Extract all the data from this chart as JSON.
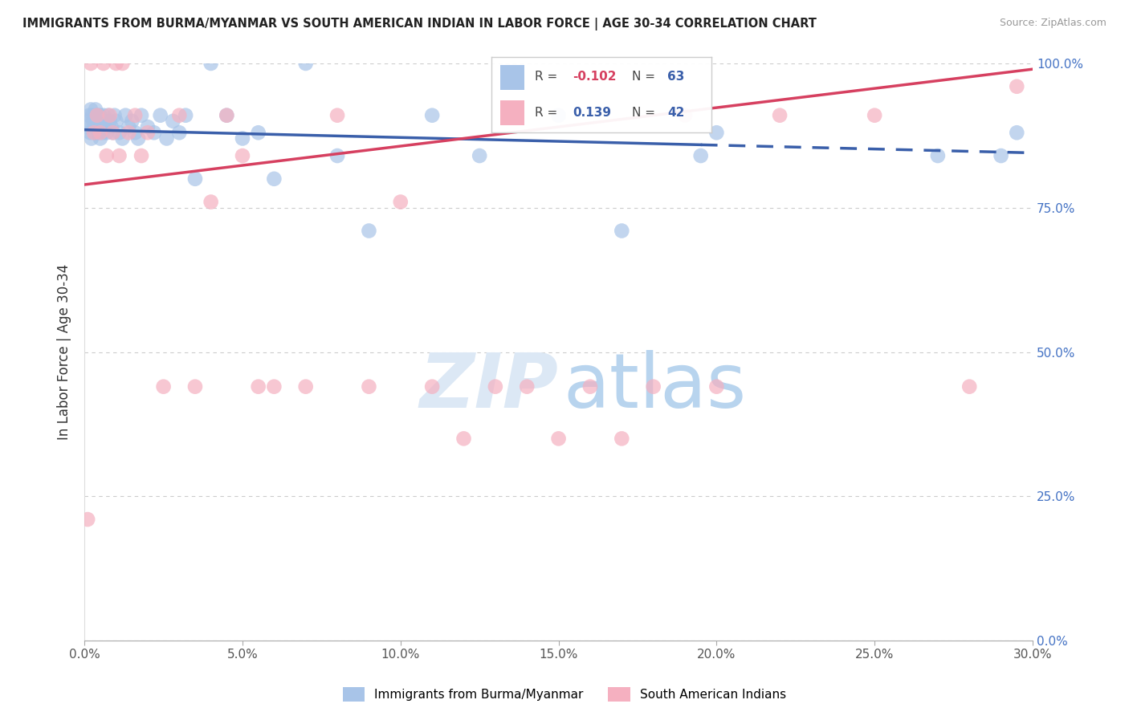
{
  "title": "IMMIGRANTS FROM BURMA/MYANMAR VS SOUTH AMERICAN INDIAN IN LABOR FORCE | AGE 30-34 CORRELATION CHART",
  "source": "Source: ZipAtlas.com",
  "ylabel": "In Labor Force | Age 30-34",
  "blue_R": -0.102,
  "blue_N": 63,
  "pink_R": 0.139,
  "pink_N": 42,
  "blue_label": "Immigrants from Burma/Myanmar",
  "pink_label": "South American Indians",
  "blue_color": "#a8c4e8",
  "pink_color": "#f5b0c0",
  "blue_line_color": "#3a5faa",
  "pink_line_color": "#d64060",
  "watermark_zip_color": "#dce8f5",
  "watermark_atlas_color": "#b8d4ee",
  "blue_x": [
    0.05,
    0.1,
    0.15,
    0.18,
    0.2,
    0.22,
    0.25,
    0.28,
    0.3,
    0.32,
    0.35,
    0.38,
    0.4,
    0.42,
    0.45,
    0.48,
    0.5,
    0.52,
    0.55,
    0.58,
    0.6,
    0.62,
    0.65,
    0.7,
    0.75,
    0.8,
    0.85,
    0.9,
    0.95,
    1.0,
    1.1,
    1.2,
    1.3,
    1.4,
    1.5,
    1.6,
    1.7,
    1.8,
    2.0,
    2.2,
    2.4,
    2.6,
    2.8,
    3.0,
    3.2,
    3.5,
    4.0,
    4.5,
    5.0,
    5.5,
    6.0,
    7.0,
    8.0,
    9.0,
    11.0,
    12.5,
    15.0,
    17.0,
    19.5,
    20.0,
    27.0,
    29.0,
    29.5
  ],
  "blue_y": [
    89,
    90,
    91,
    88,
    92,
    87,
    91,
    90,
    89,
    88,
    92,
    89,
    91,
    90,
    88,
    91,
    87,
    90,
    89,
    88,
    91,
    90,
    89,
    88,
    91,
    90,
    89,
    88,
    91,
    90,
    88,
    87,
    91,
    89,
    90,
    88,
    87,
    91,
    89,
    88,
    91,
    87,
    90,
    88,
    91,
    80,
    100,
    91,
    87,
    88,
    80,
    100,
    84,
    71,
    91,
    84,
    91,
    71,
    84,
    88,
    84,
    84,
    88
  ],
  "pink_x": [
    0.1,
    0.2,
    0.3,
    0.4,
    0.5,
    0.6,
    0.7,
    0.8,
    0.9,
    1.0,
    1.1,
    1.2,
    1.4,
    1.6,
    1.8,
    2.0,
    2.5,
    3.0,
    3.5,
    4.0,
    4.5,
    5.0,
    5.5,
    6.0,
    7.0,
    8.0,
    9.0,
    10.0,
    11.0,
    12.0,
    13.0,
    14.0,
    15.0,
    16.0,
    17.0,
    18.0,
    19.0,
    20.0,
    22.0,
    25.0,
    28.0,
    29.5
  ],
  "pink_y": [
    21,
    100,
    88,
    91,
    88,
    100,
    84,
    91,
    88,
    100,
    84,
    100,
    88,
    91,
    84,
    88,
    44,
    91,
    44,
    76,
    91,
    84,
    44,
    44,
    44,
    91,
    44,
    76,
    44,
    35,
    44,
    44,
    35,
    44,
    35,
    44,
    91,
    44,
    91,
    91,
    44,
    96
  ],
  "xmin": 0.0,
  "xmax": 30.0,
  "ymin": 0.0,
  "ymax": 100.0,
  "ytick_vals": [
    0,
    25,
    50,
    75,
    100
  ],
  "xtick_vals": [
    0,
    5,
    10,
    15,
    20,
    25,
    30
  ],
  "blue_line_x0": 0.0,
  "blue_line_y0": 88.5,
  "blue_line_x1": 30.0,
  "blue_line_y1": 84.5,
  "blue_dash_start": 19.5,
  "pink_line_x0": 0.0,
  "pink_line_y0": 79.0,
  "pink_line_x1": 30.0,
  "pink_line_y1": 99.0
}
